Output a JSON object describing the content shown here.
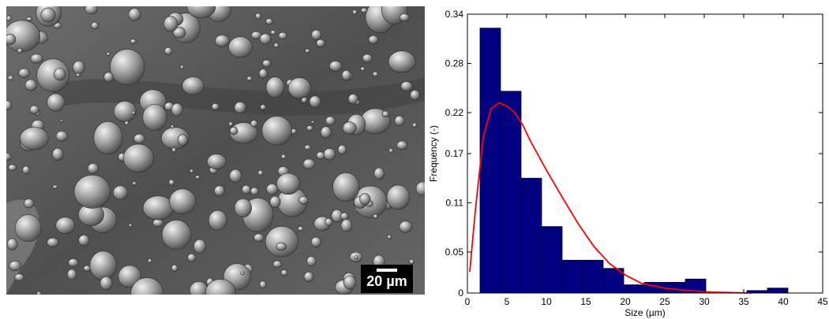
{
  "sem_image": {
    "scale_bar_label": "20 µm"
  },
  "chart_data": {
    "type": "bar",
    "xlabel": "Size (µm)",
    "ylabel": "Frequency (-)",
    "xlim": [
      0,
      45
    ],
    "ylim": [
      0,
      0.34
    ],
    "x_ticks": [
      0,
      5,
      10,
      15,
      20,
      25,
      30,
      35,
      40,
      45
    ],
    "x_tick_labels": [
      "0",
      "5",
      "10",
      "15",
      "20",
      "25",
      "30",
      "35",
      "40",
      "45"
    ],
    "y_ticks": [
      0,
      0.05,
      0.11,
      0.17,
      0.22,
      0.28,
      0.34
    ],
    "y_tick_labels": [
      "0",
      "0.05",
      "0.11",
      "0.17",
      "0.22",
      "0.28",
      "0.34"
    ],
    "bins": [
      {
        "x0": 1.6,
        "x1": 4.2,
        "value": 0.323
      },
      {
        "x0": 4.2,
        "x1": 6.8,
        "value": 0.246
      },
      {
        "x0": 6.8,
        "x1": 9.4,
        "value": 0.14
      },
      {
        "x0": 9.4,
        "x1": 12.0,
        "value": 0.081
      },
      {
        "x0": 12.0,
        "x1": 14.6,
        "value": 0.04
      },
      {
        "x0": 14.6,
        "x1": 17.2,
        "value": 0.04
      },
      {
        "x0": 17.2,
        "x1": 19.8,
        "value": 0.03
      },
      {
        "x0": 19.8,
        "x1": 22.4,
        "value": 0.01
      },
      {
        "x0": 22.4,
        "x1": 25.0,
        "value": 0.013
      },
      {
        "x0": 25.0,
        "x1": 27.6,
        "value": 0.013
      },
      {
        "x0": 27.6,
        "x1": 30.2,
        "value": 0.017
      },
      {
        "x0": 30.2,
        "x1": 32.8,
        "value": 0.0
      },
      {
        "x0": 32.8,
        "x1": 35.4,
        "value": 0.0
      },
      {
        "x0": 35.4,
        "x1": 38.0,
        "value": 0.003
      },
      {
        "x0": 38.0,
        "x1": 40.6,
        "value": 0.006
      }
    ],
    "fit_curve": {
      "type": "lognormal",
      "points": [
        [
          0.3,
          0.026
        ],
        [
          1,
          0.1
        ],
        [
          2,
          0.19
        ],
        [
          3,
          0.225
        ],
        [
          4,
          0.232
        ],
        [
          4.5,
          0.23
        ],
        [
          5,
          0.228
        ],
        [
          6,
          0.22
        ],
        [
          7,
          0.205
        ],
        [
          8,
          0.185
        ],
        [
          10,
          0.15
        ],
        [
          12,
          0.117
        ],
        [
          14,
          0.085
        ],
        [
          16,
          0.057
        ],
        [
          18,
          0.036
        ],
        [
          20,
          0.022
        ],
        [
          22,
          0.012
        ],
        [
          25,
          0.006
        ],
        [
          28,
          0.003
        ],
        [
          31,
          0.001
        ],
        [
          36,
          0.0
        ]
      ]
    },
    "colors": {
      "bar_fill": "#000080",
      "bar_edge": "#000040",
      "curve": "#ff0000"
    }
  }
}
